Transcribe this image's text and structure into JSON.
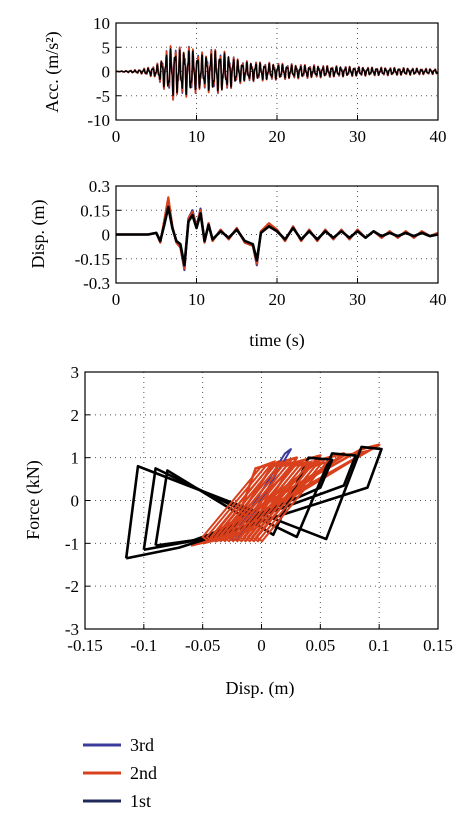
{
  "chart_data": [
    {
      "type": "line",
      "ylabel": "Acc. (m/s²)",
      "xlim": [
        0,
        40
      ],
      "ylim": [
        -10,
        10
      ],
      "x_ticks": [
        "0",
        "10",
        "20",
        "30",
        "40"
      ],
      "y_ticks": [
        "10",
        "5",
        "0",
        "-5",
        "-10"
      ],
      "grid": true,
      "series": [
        {
          "name": "3rd",
          "color": "#3b3b9e",
          "envelope_t": [
            0,
            3,
            5,
            6,
            7,
            8,
            9,
            10,
            11,
            12,
            13,
            14,
            15,
            16,
            18,
            20,
            22,
            25,
            28,
            32,
            36,
            40
          ],
          "envelope_amp": [
            0,
            0.4,
            1.2,
            3.5,
            5.5,
            4.5,
            5,
            4,
            3.5,
            4.5,
            4,
            3.5,
            2.5,
            2,
            1.8,
            1.6,
            1.4,
            1.2,
            1,
            0.8,
            0.7,
            0.5
          ]
        },
        {
          "name": "2nd",
          "color": "#d9401c",
          "envelope_t": [
            0,
            3,
            5,
            6,
            7,
            8,
            9,
            10,
            11,
            12,
            13,
            14,
            15,
            16,
            18,
            20,
            22,
            25,
            28,
            32,
            36,
            40
          ],
          "envelope_amp": [
            0,
            0.4,
            1.2,
            3.5,
            5.6,
            4.5,
            5,
            4,
            3.5,
            4.5,
            4,
            3.5,
            2.5,
            2,
            1.8,
            1.6,
            1.4,
            1.2,
            1,
            0.8,
            0.7,
            0.5
          ]
        },
        {
          "name": "1st",
          "color": "#000000",
          "envelope_t": [
            0,
            3,
            5,
            6,
            7,
            8,
            9,
            10,
            11,
            12,
            13,
            14,
            15,
            16,
            18,
            20,
            22,
            25,
            28,
            32,
            36,
            40
          ],
          "envelope_amp": [
            0,
            0.3,
            1,
            3,
            4.8,
            4,
            4.5,
            3.5,
            3,
            4,
            3.8,
            3.2,
            2.2,
            1.8,
            1.6,
            1.4,
            1.2,
            1,
            0.9,
            0.7,
            0.6,
            0.4
          ]
        }
      ]
    },
    {
      "type": "line",
      "xlabel": "time (s)",
      "ylabel": "Disp. (m)",
      "xlim": [
        0,
        40
      ],
      "ylim": [
        -0.3,
        0.3
      ],
      "x_ticks": [
        "0",
        "10",
        "20",
        "30",
        "40"
      ],
      "y_ticks": [
        "0.3",
        "0.15",
        "0",
        "-0.15",
        "-0.3"
      ],
      "grid": true,
      "series": [
        {
          "name": "3rd",
          "color": "#3b3b9e",
          "t": [
            0,
            4,
            5,
            5.5,
            6,
            6.5,
            7,
            7.5,
            8,
            8.5,
            9,
            9.5,
            10,
            10.5,
            11,
            11.5,
            12,
            13,
            14,
            15,
            16,
            17,
            17.5,
            18,
            19,
            20,
            21,
            22,
            23,
            24,
            25,
            26,
            27,
            28,
            29,
            30,
            31,
            32,
            33,
            34,
            35,
            36,
            37,
            38,
            39,
            40
          ],
          "y": [
            0,
            0,
            0.01,
            -0.05,
            0.08,
            0.21,
            0.05,
            -0.05,
            -0.08,
            -0.22,
            0.1,
            0.15,
            0.05,
            0.16,
            -0.05,
            0.07,
            -0.04,
            0.03,
            -0.03,
            0.04,
            -0.05,
            -0.07,
            -0.19,
            0.02,
            0.06,
            0.03,
            -0.04,
            0.05,
            -0.04,
            0.03,
            -0.04,
            0.03,
            -0.03,
            0.03,
            -0.03,
            0.03,
            -0.02,
            0.02,
            -0.02,
            0.02,
            -0.02,
            0.02,
            -0.02,
            0.02,
            -0.01,
            0.01
          ]
        },
        {
          "name": "2nd",
          "color": "#d9401c",
          "t": [
            0,
            4,
            5,
            5.5,
            6,
            6.5,
            7,
            7.5,
            8,
            8.5,
            9,
            9.5,
            10,
            10.5,
            11,
            11.5,
            12,
            13,
            14,
            15,
            16,
            17,
            17.5,
            18,
            19,
            20,
            21,
            22,
            23,
            24,
            25,
            26,
            27,
            28,
            29,
            30,
            31,
            32,
            33,
            34,
            35,
            36,
            37,
            38,
            39,
            40
          ],
          "y": [
            0,
            0,
            0.01,
            -0.05,
            0.09,
            0.23,
            0.05,
            -0.05,
            -0.08,
            -0.21,
            0.1,
            0.14,
            0.05,
            0.15,
            -0.05,
            0.07,
            -0.04,
            0.03,
            -0.03,
            0.04,
            -0.05,
            -0.07,
            -0.18,
            0.02,
            0.07,
            0.03,
            -0.04,
            0.05,
            -0.04,
            0.03,
            -0.04,
            0.03,
            -0.03,
            0.03,
            -0.03,
            0.03,
            -0.02,
            0.02,
            -0.02,
            0.02,
            -0.02,
            0.02,
            -0.02,
            0.02,
            -0.01,
            0.01
          ]
        },
        {
          "name": "1st",
          "color": "#000000",
          "t": [
            0,
            4,
            5,
            5.5,
            6,
            6.5,
            7,
            7.5,
            8,
            8.5,
            9,
            9.5,
            10,
            10.5,
            11,
            11.5,
            12,
            13,
            14,
            15,
            16,
            17,
            17.5,
            18,
            19,
            20,
            21,
            22,
            23,
            24,
            25,
            26,
            27,
            28,
            29,
            30,
            31,
            32,
            33,
            34,
            35,
            36,
            37,
            38,
            39,
            40
          ],
          "y": [
            0,
            0,
            0.01,
            -0.04,
            0.06,
            0.17,
            0.04,
            -0.04,
            -0.06,
            -0.19,
            0.08,
            0.12,
            0.04,
            0.13,
            -0.04,
            0.06,
            -0.03,
            0.02,
            -0.02,
            0.03,
            -0.04,
            -0.06,
            -0.16,
            0.01,
            0.05,
            0.02,
            -0.03,
            0.04,
            -0.03,
            0.02,
            -0.03,
            0.02,
            -0.02,
            0.02,
            -0.02,
            0.02,
            -0.02,
            0.02,
            -0.01,
            0.01,
            -0.01,
            0.01,
            -0.01,
            0.01,
            -0.01,
            0.0
          ]
        }
      ]
    },
    {
      "type": "line",
      "xlabel": "Disp. (m)",
      "ylabel": "Force (kN)",
      "xlim": [
        -0.15,
        0.15
      ],
      "ylim": [
        -3,
        3
      ],
      "x_ticks": [
        "-0.15",
        "-0.1",
        "-0.05",
        "0",
        "0.05",
        "0.1",
        "0.15"
      ],
      "y_ticks": [
        "3",
        "2",
        "1",
        "0",
        "-1",
        "-2",
        "-3"
      ],
      "grid": true,
      "legend": "bottom-left, outside",
      "series": [
        {
          "name": "3rd",
          "color": "#3b3b9e",
          "x": [
            -0.02,
            0.025,
            0.02,
            -0.025,
            -0.02
          ],
          "y": [
            -0.9,
            1.2,
            1.1,
            -0.9,
            -0.9
          ]
        },
        {
          "name": "2nd",
          "color": "#d9401c",
          "loops": [
            {
              "x": [
                -0.06,
                -0.045,
                0.1,
                0.085,
                -0.06
              ],
              "y": [
                -1.05,
                -0.95,
                1.3,
                1.2,
                -1.05
              ]
            },
            {
              "x": [
                -0.05,
                -0.03,
                0.09,
                0.07,
                -0.05
              ],
              "y": [
                -1.0,
                -0.85,
                1.15,
                1.05,
                -1.0
              ]
            },
            {
              "x": [
                -0.04,
                -0.02,
                0.07,
                0.05,
                -0.04
              ],
              "y": [
                -0.95,
                -0.8,
                1.1,
                0.95,
                -0.95
              ]
            },
            {
              "x": [
                -0.035,
                -0.015,
                0.05,
                0.03,
                -0.035
              ],
              "y": [
                -0.9,
                -0.75,
                1.05,
                0.9,
                -0.9
              ]
            },
            {
              "x": [
                -0.03,
                -0.01,
                0.03,
                0.01,
                -0.03
              ],
              "y": [
                -0.85,
                -0.7,
                1.0,
                0.85,
                -0.85
              ]
            },
            {
              "x": [
                -0.025,
                -0.005,
                0.015,
                -0.005,
                -0.025
              ],
              "y": [
                -0.8,
                -0.65,
                0.9,
                0.75,
                -0.8
              ]
            }
          ]
        },
        {
          "name": "1st",
          "color": "#000000",
          "loops": [
            {
              "x": [
                -0.115,
                -0.07,
                0.09,
                0.102,
                0.085,
                0.055,
                -0.105,
                -0.115
              ],
              "y": [
                -1.35,
                -1.1,
                0.3,
                1.2,
                1.25,
                -0.9,
                0.8,
                -1.35
              ]
            },
            {
              "x": [
                -0.1,
                -0.06,
                0.07,
                0.08,
                0.06,
                0.03,
                -0.09,
                -0.1
              ],
              "y": [
                -1.15,
                -0.95,
                0.35,
                1.05,
                1.1,
                -0.85,
                0.75,
                -1.15
              ]
            },
            {
              "x": [
                -0.09,
                -0.05,
                0.05,
                0.06,
                0.04,
                0.01,
                -0.08,
                -0.09
              ],
              "y": [
                -1.05,
                -0.9,
                0.3,
                0.95,
                1.0,
                -0.8,
                0.7,
                -1.05
              ]
            }
          ]
        }
      ]
    }
  ]
}
